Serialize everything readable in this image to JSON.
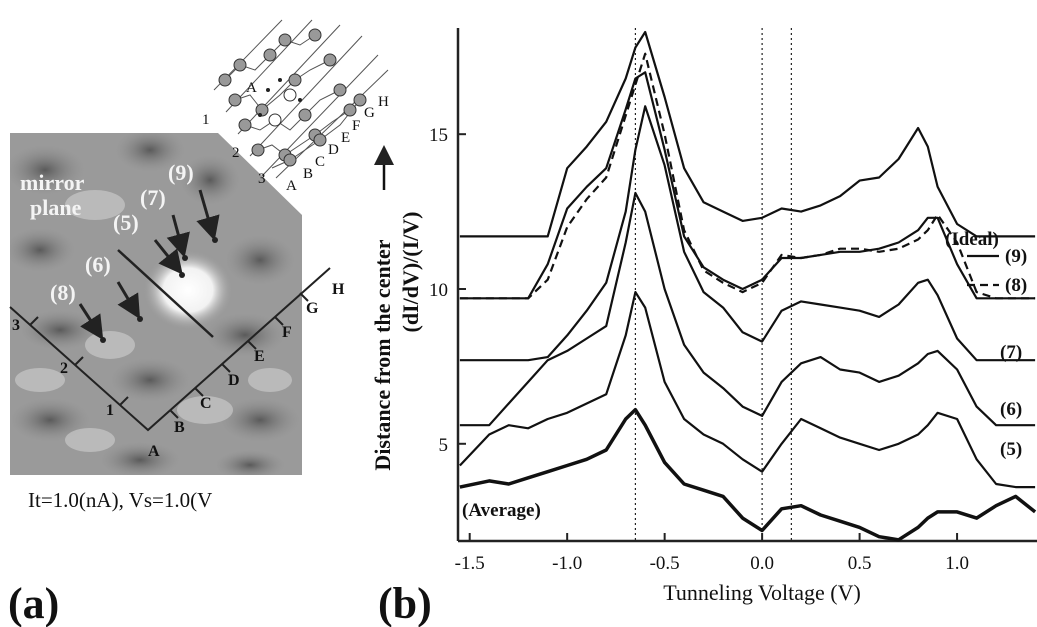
{
  "panel_a": {
    "mirror_plane": [
      "mirror",
      "plane"
    ],
    "site_labels": [
      "(9)",
      "(7)",
      "(5)",
      "(6)",
      "(8)"
    ],
    "row_labels": [
      "1",
      "2",
      "3"
    ],
    "column_labels": [
      "A",
      "B",
      "C",
      "D",
      "E",
      "F",
      "G",
      "H"
    ],
    "inset_row_labels": [
      "1",
      "2",
      "3"
    ],
    "inset_column_labels": [
      "A",
      "B",
      "C",
      "D",
      "E",
      "F",
      "G",
      "H"
    ],
    "inset_center_label": "A",
    "caption": "It=1.0(nA), Vs=1.0(V",
    "panel_label": "(a)"
  },
  "panel_b_label": "(b)",
  "chart_data": {
    "type": "line",
    "xlabel": "Tunneling Voltage (V)",
    "ylabel": [
      "Distance from the center",
      "(dI/dV)/(I/V)"
    ],
    "x": [
      -1.55,
      -1.4,
      -1.3,
      -1.2,
      -1.1,
      -1.0,
      -0.9,
      -0.8,
      -0.7,
      -0.65,
      -0.6,
      -0.5,
      -0.4,
      -0.3,
      -0.2,
      -0.1,
      0,
      0.1,
      0.2,
      0.3,
      0.4,
      0.5,
      0.6,
      0.7,
      0.8,
      0.85,
      0.9,
      1.0,
      1.1,
      1.2,
      1.3,
      1.4
    ],
    "xlim": [
      -1.56,
      1.41
    ],
    "ylim": [
      1.86,
      18.43
    ],
    "xticks": [
      {
        "value": -1.5,
        "label": "-1.5"
      },
      {
        "value": -1.0,
        "label": "-1.0"
      },
      -0.5,
      {
        "value": 0,
        "label": "0.0"
      },
      0.5,
      {
        "value": 1.0,
        "label": "1.0"
      }
    ],
    "yticks": [
      5,
      10,
      15
    ],
    "reference_lines_x": [
      -0.65,
      0,
      0.15
    ],
    "series": [
      {
        "name": "(Ideal)",
        "color": "#111111",
        "values": [
          11.7,
          11.7,
          11.7,
          11.7,
          11.7,
          13.9,
          14.6,
          15.4,
          16.8,
          17.8,
          18.3,
          16.2,
          13.9,
          12.8,
          12.5,
          12.2,
          12.3,
          12.6,
          12.5,
          12.7,
          13.0,
          13.5,
          13.6,
          14.2,
          15.2,
          14.6,
          13.3,
          12.1,
          11.7,
          11.7,
          11.7,
          11.7
        ]
      },
      {
        "name": "(9)",
        "color": "#111111",
        "values": [
          9.7,
          9.7,
          9.7,
          9.7,
          10.8,
          12.6,
          13.3,
          13.9,
          15.8,
          16.8,
          17.0,
          14.5,
          11.7,
          10.7,
          10.3,
          10.0,
          10.3,
          11.0,
          11.0,
          11.1,
          11.2,
          11.2,
          11.3,
          11.5,
          11.9,
          12.3,
          12.3,
          10.8,
          9.7,
          9.7,
          9.7,
          9.7
        ]
      },
      {
        "name": "(8)",
        "color": "#111111",
        "dashed": true,
        "values": [
          9.7,
          9.7,
          9.7,
          9.7,
          10.3,
          12.0,
          12.9,
          13.6,
          15.6,
          16.6,
          17.6,
          15.0,
          11.9,
          10.6,
          10.2,
          9.9,
          10.2,
          11.1,
          11.0,
          11.1,
          11.3,
          11.3,
          11.2,
          11.3,
          11.6,
          11.9,
          12.4,
          11.5,
          9.9,
          9.7,
          9.7,
          9.7
        ]
      },
      {
        "name": "(7)",
        "color": "#111111",
        "values": [
          7.7,
          7.7,
          7.7,
          7.7,
          7.8,
          8.5,
          9.3,
          10.2,
          12.5,
          14.5,
          15.9,
          14.0,
          11.2,
          9.9,
          9.4,
          8.6,
          8.3,
          9.3,
          9.6,
          9.5,
          9.4,
          9.3,
          9.1,
          9.5,
          10.2,
          10.3,
          9.8,
          8.4,
          7.7,
          7.7,
          7.7,
          7.7
        ]
      },
      {
        "name": "(6)",
        "color": "#111111",
        "values": [
          5.6,
          5.6,
          6.3,
          7.0,
          7.7,
          8.0,
          8.4,
          8.8,
          11.5,
          13.1,
          12.5,
          10.0,
          8.2,
          7.3,
          6.8,
          6.2,
          5.9,
          7.0,
          7.6,
          7.8,
          7.4,
          7.3,
          7.0,
          7.2,
          7.6,
          7.9,
          8.0,
          7.4,
          6.2,
          5.6,
          5.6,
          5.6
        ]
      },
      {
        "name": "(5)",
        "color": "#111111",
        "values": [
          4.3,
          5.3,
          5.6,
          5.5,
          5.8,
          6.0,
          6.3,
          6.6,
          8.5,
          9.9,
          9.4,
          7.0,
          5.8,
          5.3,
          5.0,
          4.5,
          4.1,
          5.0,
          5.8,
          5.5,
          5.2,
          5.0,
          4.8,
          5.0,
          5.3,
          5.6,
          6.0,
          5.8,
          4.5,
          3.7,
          3.6,
          3.6
        ]
      },
      {
        "name": "(Average)",
        "color": "#111111",
        "thick": true,
        "values": [
          3.6,
          3.8,
          3.7,
          3.9,
          4.1,
          4.3,
          4.5,
          4.8,
          5.8,
          6.1,
          5.6,
          4.4,
          3.7,
          3.5,
          3.3,
          2.6,
          2.2,
          2.9,
          3.0,
          2.7,
          2.5,
          2.3,
          2.0,
          1.9,
          2.3,
          2.6,
          2.8,
          2.8,
          2.6,
          3.0,
          3.3,
          2.8
        ]
      }
    ]
  }
}
